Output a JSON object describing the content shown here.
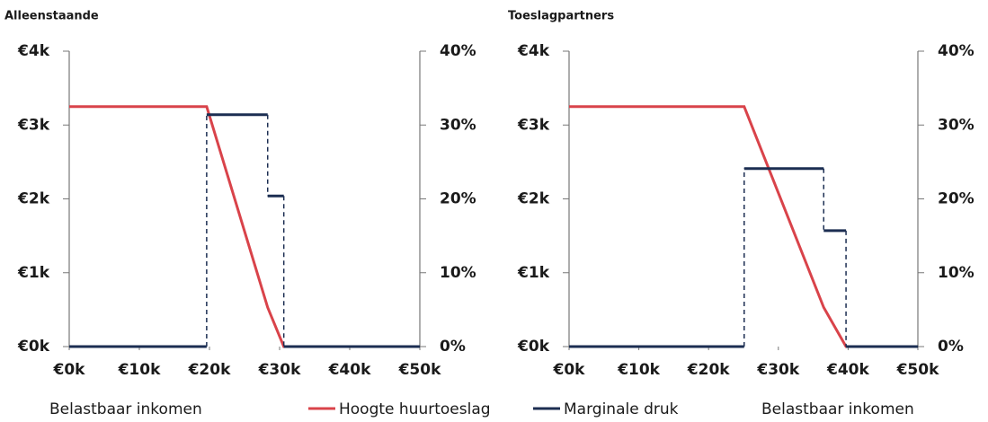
{
  "chart_data": [
    {
      "type": "line",
      "title": "Alleenstaande",
      "x_label": "Belastbaar inkomen",
      "xlim": [
        0,
        50
      ],
      "xticks": [
        {
          "value": 0,
          "label": "€0k"
        },
        {
          "value": 10,
          "label": "€10k"
        },
        {
          "value": 20,
          "label": "€20k"
        },
        {
          "value": 30,
          "label": "€30k"
        },
        {
          "value": 40,
          "label": "€40k"
        },
        {
          "value": 50,
          "label": "€50k"
        }
      ],
      "ylim": [
        0,
        4
      ],
      "yticks": [
        {
          "value": 0,
          "label": "€0k"
        },
        {
          "value": 1,
          "label": "€1k"
        },
        {
          "value": 2,
          "label": "€2k"
        },
        {
          "value": 3,
          "label": "€3k"
        },
        {
          "value": 4,
          "label": "€4k"
        }
      ],
      "y2lim": [
        0,
        40
      ],
      "y2ticks": [
        {
          "value": 0,
          "label": "0%"
        },
        {
          "value": 10,
          "label": "10%"
        },
        {
          "value": 20,
          "label": "20%"
        },
        {
          "value": 30,
          "label": "30%"
        },
        {
          "value": 40,
          "label": "40%"
        }
      ],
      "series": [
        {
          "name": "Hoogte huurtoeslag",
          "color": "#d9434a",
          "x": [
            0,
            19.6,
            28.3,
            30.6,
            50
          ],
          "values": [
            3.25,
            3.25,
            0.53,
            0,
            0
          ]
        },
        {
          "name": "Marginale druk",
          "color": "#1c2e52",
          "axis": "y2",
          "step": "post",
          "x": [
            0,
            19.6,
            28.3,
            30.6,
            50
          ],
          "values": [
            0,
            31.4,
            20.4,
            0,
            0
          ]
        }
      ]
    },
    {
      "type": "line",
      "title": "Toeslagpartners",
      "x_label": "Belastbaar inkomen",
      "xlim": [
        0,
        50
      ],
      "xticks": [
        {
          "value": 0,
          "label": "€0k"
        },
        {
          "value": 10,
          "label": "€10k"
        },
        {
          "value": 20,
          "label": "€20k"
        },
        {
          "value": 30,
          "label": "€30k"
        },
        {
          "value": 40,
          "label": "€40k"
        },
        {
          "value": 50,
          "label": "€50k"
        }
      ],
      "ylim": [
        0,
        4
      ],
      "yticks": [
        {
          "value": 0,
          "label": "€0k"
        },
        {
          "value": 1,
          "label": "€1k"
        },
        {
          "value": 2,
          "label": "€2k"
        },
        {
          "value": 3,
          "label": "€3k"
        },
        {
          "value": 4,
          "label": "€4k"
        }
      ],
      "y2lim": [
        0,
        40
      ],
      "y2ticks": [
        {
          "value": 0,
          "label": "0%"
        },
        {
          "value": 10,
          "label": "10%"
        },
        {
          "value": 20,
          "label": "20%"
        },
        {
          "value": 30,
          "label": "30%"
        },
        {
          "value": 40,
          "label": "40%"
        }
      ],
      "series": [
        {
          "color": "#d9434a",
          "x": [
            0,
            25.1,
            36.5,
            39.7,
            50
          ],
          "values": [
            3.25,
            3.25,
            0.53,
            0,
            0
          ]
        },
        {
          "color": "#1c2e52",
          "axis": "y2",
          "step": "post",
          "x": [
            0,
            25.1,
            36.5,
            39.7,
            50
          ],
          "values": [
            0,
            24.1,
            15.7,
            0,
            0
          ]
        }
      ]
    }
  ]
}
